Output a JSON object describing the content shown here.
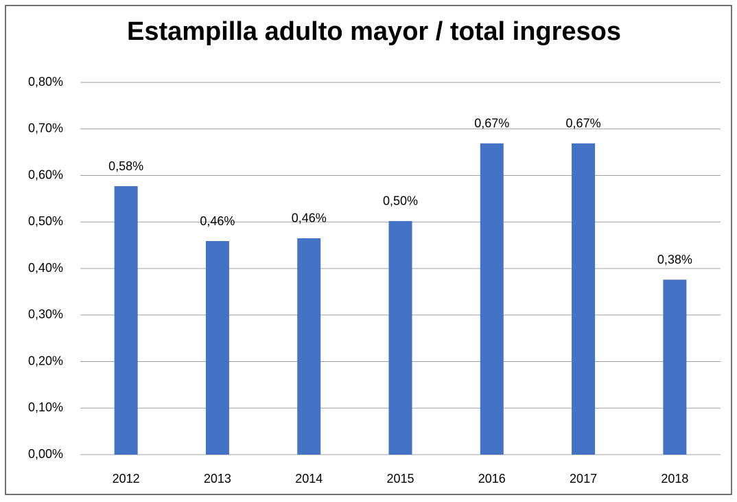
{
  "chart_data": {
    "type": "bar",
    "title": "Estampilla adulto mayor / total ingresos",
    "categories": [
      "2012",
      "2013",
      "2014",
      "2015",
      "2016",
      "2017",
      "2018"
    ],
    "values": [
      0.577,
      0.459,
      0.465,
      0.502,
      0.669,
      0.669,
      0.376
    ],
    "value_labels": [
      "0,58%",
      "0,46%",
      "0,46%",
      "0,50%",
      "0,67%",
      "0,67%",
      "0,38%"
    ],
    "color": "#4472c4",
    "ylim": [
      0,
      0.8
    ],
    "yticks": [
      {
        "value": 0,
        "label": "0,00%"
      },
      {
        "value": 0.1,
        "label": "0,10%"
      },
      {
        "value": 0.2,
        "label": "0,20%"
      },
      {
        "value": 0.3,
        "label": "0,30%"
      },
      {
        "value": 0.4,
        "label": "0,40%"
      },
      {
        "value": 0.5,
        "label": "0,50%"
      },
      {
        "value": 0.6,
        "label": "0,60%"
      },
      {
        "value": 0.7,
        "label": "0,70%"
      },
      {
        "value": 0.8,
        "label": "0,80%"
      }
    ],
    "grid": true
  }
}
